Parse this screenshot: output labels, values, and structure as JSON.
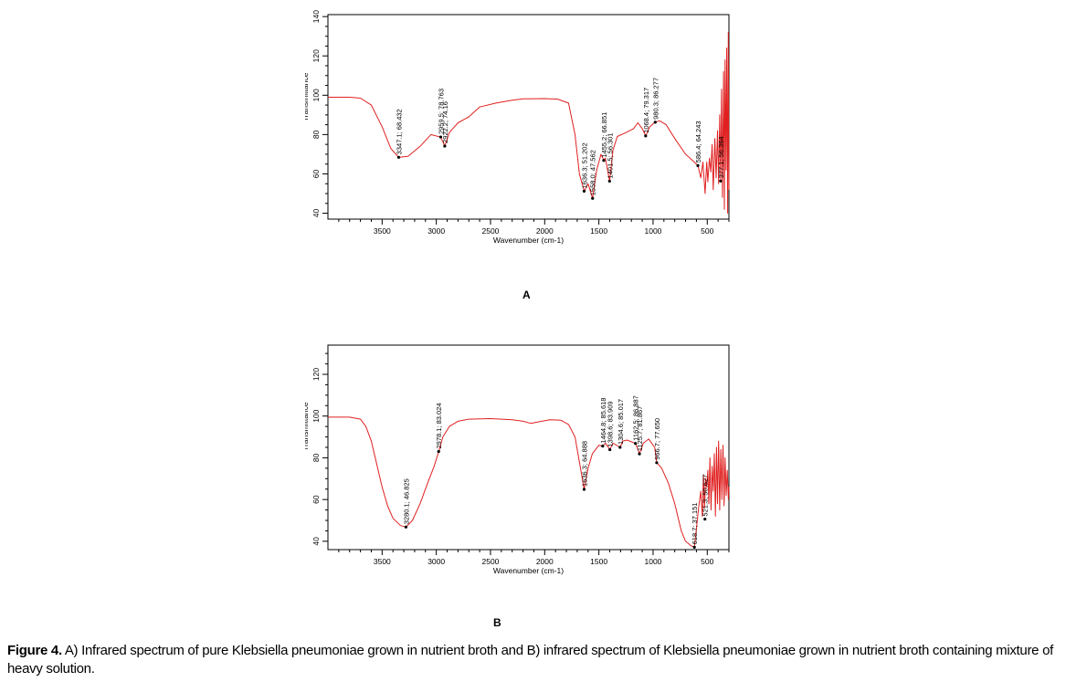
{
  "caption": {
    "prefix": "Figure 4.",
    "text": " A) Infrared spectrum of pure Klebsiella pneumoniae grown in nutrient broth and B) infrared spectrum of Klebsiella pneumoniae grown in nutrient broth containing mixture of heavy solution."
  },
  "colors": {
    "spectrum": "#e02020",
    "axis": "#000000",
    "marker": "#000000"
  },
  "chart_data": [
    {
      "type": "line",
      "panel": "A",
      "xlabel": "Wavenumber (cm-1)",
      "ylabel": "Transmittance",
      "xlim": [
        4000,
        300
      ],
      "x_reversed": true,
      "ylim": [
        37,
        141
      ],
      "xticks": [
        3500,
        3000,
        2500,
        2000,
        1500,
        1000,
        500
      ],
      "yticks": [
        40,
        60,
        80,
        100,
        120,
        140
      ],
      "grid": false,
      "series": [
        {
          "values": [
            [
              4000,
              99
            ],
            [
              3800,
              99
            ],
            [
              3700,
              98.5
            ],
            [
              3600,
              95
            ],
            [
              3500,
              84
            ],
            [
              3420,
              73
            ],
            [
              3347,
              68.4
            ],
            [
              3260,
              69
            ],
            [
              3150,
              74
            ],
            [
              3050,
              80
            ],
            [
              2960,
              78.7
            ],
            [
              2922,
              74.2
            ],
            [
              2880,
              81
            ],
            [
              2800,
              86
            ],
            [
              2700,
              89
            ],
            [
              2600,
              94
            ],
            [
              2450,
              96
            ],
            [
              2300,
              97.5
            ],
            [
              2200,
              98.2
            ],
            [
              2000,
              98.3
            ],
            [
              1880,
              98
            ],
            [
              1780,
              96
            ],
            [
              1720,
              80
            ],
            [
              1680,
              60
            ],
            [
              1636,
              51.2
            ],
            [
              1600,
              55
            ],
            [
              1558,
              47.6
            ],
            [
              1520,
              62
            ],
            [
              1480,
              70
            ],
            [
              1455,
              66.9
            ],
            [
              1440,
              68
            ],
            [
              1401,
              56.3
            ],
            [
              1370,
              72
            ],
            [
              1330,
              79
            ],
            [
              1250,
              81
            ],
            [
              1180,
              83
            ],
            [
              1140,
              86
            ],
            [
              1100,
              83
            ],
            [
              1068,
              79.3
            ],
            [
              1030,
              84
            ],
            [
              980,
              86.3
            ],
            [
              940,
              87
            ],
            [
              880,
              85
            ],
            [
              800,
              78
            ],
            [
              700,
              70
            ],
            [
              620,
              66
            ],
            [
              586,
              64.2
            ],
            [
              560,
              58
            ],
            [
              540,
              66
            ],
            [
              520,
              50
            ],
            [
              505,
              66
            ],
            [
              495,
              56
            ],
            [
              480,
              68
            ],
            [
              468,
              61
            ],
            [
              455,
              75
            ],
            [
              445,
              52
            ],
            [
              430,
              78
            ],
            [
              418,
              58
            ],
            [
              405,
              82
            ],
            [
              395,
              55
            ],
            [
              385,
              90
            ],
            [
              377,
              56.4
            ],
            [
              368,
              103
            ],
            [
              360,
              48
            ],
            [
              350,
              112
            ],
            [
              342,
              42
            ],
            [
              335,
              118
            ],
            [
              327,
              62
            ],
            [
              320,
              124
            ],
            [
              312,
              40
            ],
            [
              306,
              132
            ],
            [
              300,
              52
            ]
          ]
        }
      ],
      "annotations": [
        {
          "x": 3347.1,
          "y": 68.432,
          "label": "3347.1; 68.432"
        },
        {
          "x": 2959.5,
          "y": 78.763,
          "label": "2959.5; 78.763"
        },
        {
          "x": 2922.2,
          "y": 74.16,
          "label": "2922.2; 74.16"
        },
        {
          "x": 1636.3,
          "y": 51.202,
          "label": "1636.3; 51.202"
        },
        {
          "x": 1558.0,
          "y": 47.562,
          "label": "1558.0; 47.562"
        },
        {
          "x": 1455.2,
          "y": 66.851,
          "label": "1455.2; 66.851"
        },
        {
          "x": 1401.5,
          "y": 56.301,
          "label": "1401.5; 56.301"
        },
        {
          "x": 1068.4,
          "y": 79.317,
          "label": "1068.4; 79.317"
        },
        {
          "x": 980.3,
          "y": 86.277,
          "label": "980.3; 86.277"
        },
        {
          "x": 586.4,
          "y": 64.243,
          "label": "586.4; 64.243"
        },
        {
          "x": 377.1,
          "y": 56.364,
          "label": "377.1; 56.364"
        }
      ]
    },
    {
      "type": "line",
      "panel": "B",
      "xlabel": "Wavenumber (cm-1)",
      "ylabel": "Transmittance",
      "xlim": [
        4000,
        300
      ],
      "x_reversed": true,
      "ylim": [
        36,
        134
      ],
      "xticks": [
        3500,
        3000,
        2500,
        2000,
        1500,
        1000,
        500
      ],
      "yticks": [
        40,
        60,
        80,
        100,
        120
      ],
      "grid": false,
      "series": [
        {
          "values": [
            [
              4000,
              99.5
            ],
            [
              3800,
              99.5
            ],
            [
              3700,
              98.5
            ],
            [
              3650,
              95
            ],
            [
              3600,
              88
            ],
            [
              3550,
              77
            ],
            [
              3500,
              66
            ],
            [
              3450,
              57
            ],
            [
              3400,
              51
            ],
            [
              3330,
              47.5
            ],
            [
              3280,
              46.8
            ],
            [
              3220,
              50
            ],
            [
              3150,
              58
            ],
            [
              3080,
              68
            ],
            [
              3020,
              76
            ],
            [
              2978,
              83.0
            ],
            [
              2940,
              90
            ],
            [
              2880,
              95
            ],
            [
              2800,
              97.5
            ],
            [
              2700,
              98.5
            ],
            [
              2500,
              98.8
            ],
            [
              2300,
              98.2
            ],
            [
              2200,
              97.5
            ],
            [
              2130,
              96.5
            ],
            [
              2050,
              97.3
            ],
            [
              1950,
              98.2
            ],
            [
              1850,
              98
            ],
            [
              1780,
              96
            ],
            [
              1720,
              90
            ],
            [
              1680,
              78
            ],
            [
              1636,
              64.9
            ],
            [
              1600,
              75
            ],
            [
              1560,
              82
            ],
            [
              1500,
              86
            ],
            [
              1465,
              85.6
            ],
            [
              1440,
              87
            ],
            [
              1398,
              84
            ],
            [
              1370,
              87
            ],
            [
              1304,
              85.0
            ],
            [
              1280,
              88
            ],
            [
              1240,
              88.5
            ],
            [
              1162,
              86.9
            ],
            [
              1125,
              82
            ],
            [
              1090,
              87
            ],
            [
              1040,
              89
            ],
            [
              985,
              85
            ],
            [
              966,
              77.7
            ],
            [
              920,
              75
            ],
            [
              860,
              68
            ],
            [
              800,
              58
            ],
            [
              740,
              45
            ],
            [
              700,
              40
            ],
            [
              676,
              39
            ],
            [
              650,
              37.8
            ],
            [
              619,
              37.2
            ],
            [
              600,
              46
            ],
            [
              580,
              56
            ],
            [
              560,
              64
            ],
            [
              545,
              52
            ],
            [
              535,
              72
            ],
            [
              525,
              56
            ],
            [
              515,
              70
            ],
            [
              505,
              66
            ],
            [
              495,
              74
            ],
            [
              485,
              58
            ],
            [
              475,
              80
            ],
            [
              465,
              55
            ],
            [
              455,
              76
            ],
            [
              445,
              64
            ],
            [
              435,
              82
            ],
            [
              425,
              52
            ],
            [
              415,
              85
            ],
            [
              405,
              58
            ],
            [
              395,
              88
            ],
            [
              385,
              55
            ],
            [
              375,
              84
            ],
            [
              365,
              60
            ],
            [
              355,
              86
            ],
            [
              345,
              57
            ],
            [
              335,
              80
            ],
            [
              325,
              62
            ],
            [
              315,
              74
            ],
            [
              305,
              60
            ],
            [
              300,
              66
            ]
          ]
        }
      ],
      "annotations": [
        {
          "x": 3280.1,
          "y": 46.825,
          "label": "3280.1; 46.825"
        },
        {
          "x": 2978.1,
          "y": 83.024,
          "label": "2978.1; 83.024"
        },
        {
          "x": 1636.3,
          "y": 64.888,
          "label": "1636.3; 64.888"
        },
        {
          "x": 1464.8,
          "y": 85.618,
          "label": "1464.8; 85.618"
        },
        {
          "x": 1398.6,
          "y": 83.909,
          "label": "1398.6; 83.909"
        },
        {
          "x": 1304.6,
          "y": 85.017,
          "label": "1304.6; 85.017"
        },
        {
          "x": 1162.5,
          "y": 86.887,
          "label": "1162.5; 86.887"
        },
        {
          "x": 1125.7,
          "y": 81.867,
          "label": "1125.7; 81.867"
        },
        {
          "x": 966.7,
          "y": 77.65,
          "label": "966.7; 77.650"
        },
        {
          "x": 618.7,
          "y": 37.151,
          "label": "618.7; 37.151"
        },
        {
          "x": 521.3,
          "y": 50.627,
          "label": "521.3; 50.627"
        }
      ]
    }
  ]
}
